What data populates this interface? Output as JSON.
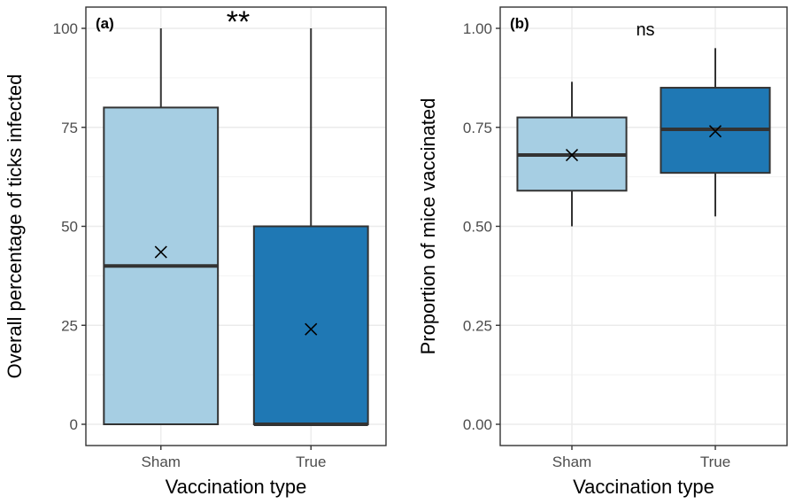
{
  "chart_data": [
    {
      "type": "box",
      "panel_label": "(a)",
      "annotation": "**",
      "xlabel": "Vaccination type",
      "ylabel": "Overall percentage of ticks infected",
      "ylim": [
        0,
        100
      ],
      "yticks": [
        0,
        25,
        50,
        75,
        100
      ],
      "ytick_labels": [
        "0",
        "25",
        "50",
        "75",
        "100"
      ],
      "grid": true,
      "categories": [
        "Sham",
        "True"
      ],
      "boxes": [
        {
          "category": "Sham",
          "min": 0,
          "q1": 0,
          "median": 40,
          "q3": 80,
          "max": 100,
          "mean": 43.5,
          "color": "#a6cee3"
        },
        {
          "category": "True",
          "min": 0,
          "q1": 0,
          "median": 0,
          "q3": 50,
          "max": 100,
          "mean": 24,
          "color": "#1f78b4"
        }
      ]
    },
    {
      "type": "box",
      "panel_label": "(b)",
      "annotation": "ns",
      "xlabel": "Vaccination type",
      "ylabel": "Proportion of mice vaccinated",
      "ylim": [
        0,
        1
      ],
      "yticks": [
        0,
        0.25,
        0.5,
        0.75,
        1.0
      ],
      "ytick_labels": [
        "0.00",
        "0.25",
        "0.50",
        "0.75",
        "1.00"
      ],
      "grid": true,
      "categories": [
        "Sham",
        "True"
      ],
      "boxes": [
        {
          "category": "Sham",
          "min": 0.5,
          "q1": 0.59,
          "median": 0.68,
          "q3": 0.775,
          "max": 0.865,
          "mean": 0.68,
          "color": "#a6cee3"
        },
        {
          "category": "True",
          "min": 0.525,
          "q1": 0.635,
          "median": 0.745,
          "q3": 0.85,
          "max": 0.95,
          "mean": 0.74,
          "color": "#1f78b4"
        }
      ]
    }
  ]
}
